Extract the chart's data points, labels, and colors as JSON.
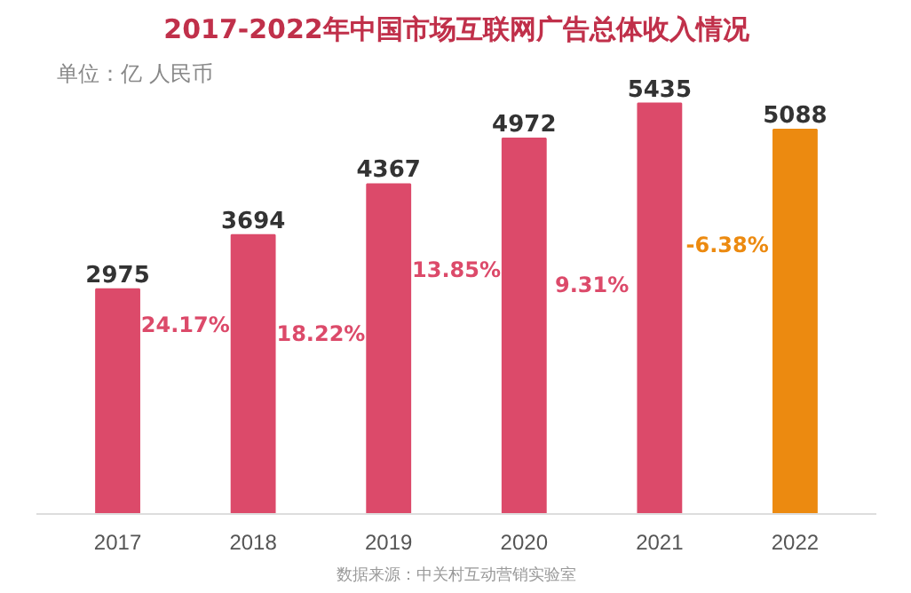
{
  "chart_data": {
    "type": "bar",
    "title": "2017-2022年中国市场互联网广告总体收入情况",
    "subtitle": "单位：亿 人民币",
    "categories": [
      "2017",
      "2018",
      "2019",
      "2020",
      "2021",
      "2022"
    ],
    "series": [
      {
        "values": [
          2975,
          3694,
          4367,
          4972,
          5435,
          5088
        ],
        "colors": [
          "#dc4a6a",
          "#dc4a6a",
          "#dc4a6a",
          "#dc4a6a",
          "#dc4a6a",
          "#ec8a10"
        ]
      }
    ],
    "data_labels": true,
    "annotations": [
      "24.17%",
      "18.22%",
      "13.85%",
      "9.31%",
      "-6.38%",
      "数据来源：中关村互动营销实验室"
    ],
    "tick_labels": "x",
    "grid": false
  }
}
